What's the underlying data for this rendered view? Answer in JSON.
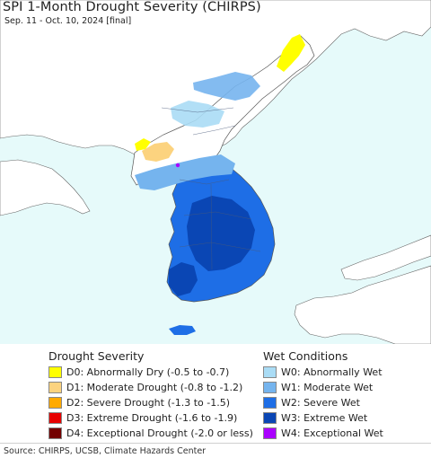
{
  "title": "SPI 1-Month Drought Severity (CHIRPS)",
  "subtitle": "Sep. 11 - Oct. 10, 2024 [final]",
  "legend": {
    "drought": {
      "title": "Drought Severity",
      "items": [
        {
          "label": "D0: Abnormally Dry (-0.5 to -0.7)",
          "color": "#ffff00"
        },
        {
          "label": "D1: Moderate Drought (-0.8 to -1.2)",
          "color": "#fcd37f"
        },
        {
          "label": "D2: Severe Drought (-1.3 to -1.5)",
          "color": "#ffaa00"
        },
        {
          "label": "D3: Extreme Drought (-1.6 to -1.9)",
          "color": "#e60000"
        },
        {
          "label": "D4: Exceptional Drought (-2.0 or less)",
          "color": "#730000"
        }
      ]
    },
    "wet": {
      "title": "Wet Conditions",
      "items": [
        {
          "label": "W0: Abnormally Wet",
          "color": "#aadcf5"
        },
        {
          "label": "W1: Moderate Wet",
          "color": "#75b4ee"
        },
        {
          "label": "W2: Severe Wet",
          "color": "#1e6ee6"
        },
        {
          "label": "W3: Extreme Wet",
          "color": "#0a46b4"
        },
        {
          "label": "W4: Exceptional Wet",
          "color": "#aa00ff"
        }
      ]
    }
  },
  "source": "Source: CHIRPS, UCSB, Climate Hazards Center",
  "colors": {
    "ocean": "#e6fafa",
    "land": "#ffffff",
    "boundary": "#555555"
  }
}
